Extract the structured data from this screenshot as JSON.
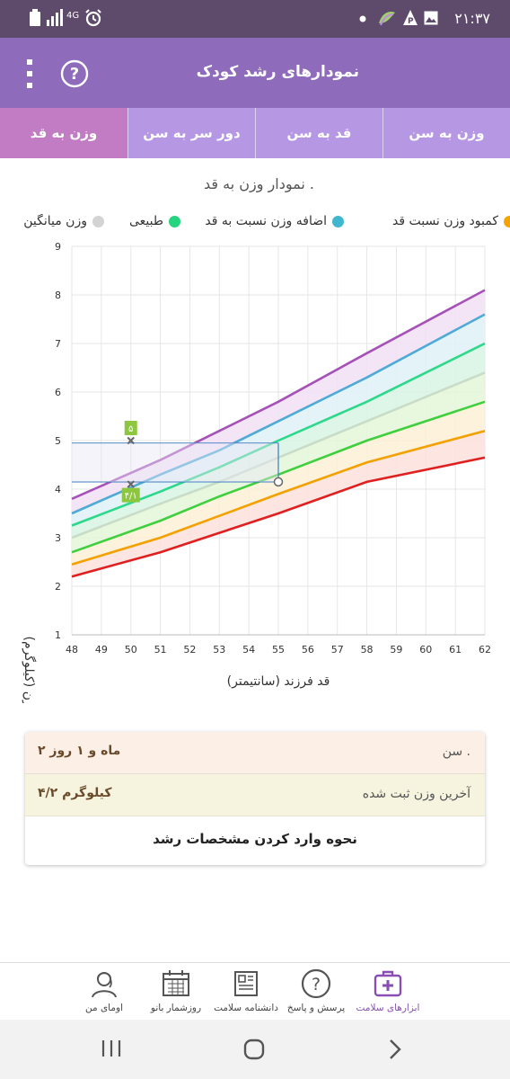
{
  "status_bar": {
    "time": "۲۱:۳۷",
    "network": "4G"
  },
  "app_bar": {
    "title": "نمودارهای رشد کودک"
  },
  "tabs": [
    {
      "label": "وزن به سن"
    },
    {
      "label": "قد به سن"
    },
    {
      "label": "دور سر به سن"
    },
    {
      "label": "وزن به قد"
    }
  ],
  "active_tab": "وزن به قد",
  "chart_title": "نمودار وزن به قد .",
  "legend": [
    {
      "label": "وزن میانگین",
      "color": "#d3d3d3"
    },
    {
      "label": "طبیعی",
      "color": "#26d47f"
    },
    {
      "label": "اضافه وزن نسبت به قد",
      "color": "#40b6cf"
    },
    {
      "label": "کمبود وزن نسبت قد",
      "color": "#f5a300"
    }
  ],
  "chart_data": {
    "type": "line",
    "xlabel": "قد فرزند (سانتیمتر)",
    "ylabel": "وزن (کیلوگرم)",
    "xlim": [
      48,
      62
    ],
    "ylim": [
      1,
      9
    ],
    "x_ticks": [
      "48",
      "49",
      "50",
      "51",
      "52",
      "53",
      "54",
      "55",
      "56",
      "57",
      "58",
      "59",
      "60",
      "61",
      "62"
    ],
    "y_ticks": [
      "1",
      "2",
      "3",
      "4",
      "5",
      "6",
      "7",
      "8",
      "9"
    ],
    "grid": true,
    "series": [
      {
        "color": "#a552b6",
        "x": [
          48,
          51,
          53,
          55,
          58,
          62
        ],
        "y": [
          3.8,
          4.6,
          5.2,
          5.8,
          6.8,
          8.1
        ]
      },
      {
        "color": "#4faad6",
        "x": [
          48,
          51,
          53,
          55,
          58,
          62
        ],
        "y": [
          3.5,
          4.3,
          4.8,
          5.4,
          6.3,
          7.6
        ]
      },
      {
        "color": "#2cd889",
        "x": [
          48,
          51,
          53,
          55,
          58,
          62
        ],
        "y": [
          3.25,
          3.95,
          4.45,
          5.0,
          5.8,
          7.0
        ]
      },
      {
        "color": "#c8dcc8",
        "x": [
          48,
          51,
          53,
          55,
          58,
          62
        ],
        "y": [
          3.0,
          3.7,
          4.15,
          4.65,
          5.4,
          6.4
        ]
      },
      {
        "color": "#3fcf3f",
        "x": [
          48,
          51,
          53,
          55,
          58,
          62
        ],
        "y": [
          2.7,
          3.35,
          3.85,
          4.3,
          5.0,
          5.8
        ]
      },
      {
        "color": "#f2a100",
        "x": [
          48,
          51,
          53,
          55,
          58,
          62
        ],
        "y": [
          2.45,
          3.0,
          3.45,
          3.9,
          4.55,
          5.2
        ]
      },
      {
        "color": "#e02020",
        "x": [
          48,
          51,
          53,
          55,
          58,
          62
        ],
        "y": [
          2.2,
          2.7,
          3.1,
          3.5,
          4.15,
          4.65
        ]
      }
    ],
    "points": [
      {
        "x": 50,
        "y": 5.0,
        "label": "۵"
      },
      {
        "x": 50,
        "y": 4.1,
        "label": "۴/۱"
      }
    ],
    "marker": {
      "x": 55,
      "y": 4.15
    },
    "reference_lines": [
      {
        "x0": 48,
        "x1": 55,
        "y": 4.95
      },
      {
        "x0": 48,
        "x1": 55,
        "y": 4.15
      }
    ]
  },
  "info_card": {
    "age_label": "سن .",
    "age_value": "۲ ماه و ۱ روز",
    "weight_label": "آخرین وزن ثبت شده",
    "weight_value": "۴/۲ کیلوگرم",
    "howto_label": "نحوه وارد کردن مشخصات رشد"
  },
  "bottom_nav": [
    {
      "label": "ابزارهای سلامت",
      "icon": "medical-kit-icon",
      "active": true
    },
    {
      "label": "پرسش و پاسخ",
      "icon": "question-icon",
      "active": false
    },
    {
      "label": "دانشنامه سلامت",
      "icon": "newspaper-icon",
      "active": false
    },
    {
      "label": "روزشمار بانو",
      "icon": "calendar-icon",
      "active": false
    },
    {
      "label": "اومای من",
      "icon": "profile-icon",
      "active": false
    }
  ]
}
